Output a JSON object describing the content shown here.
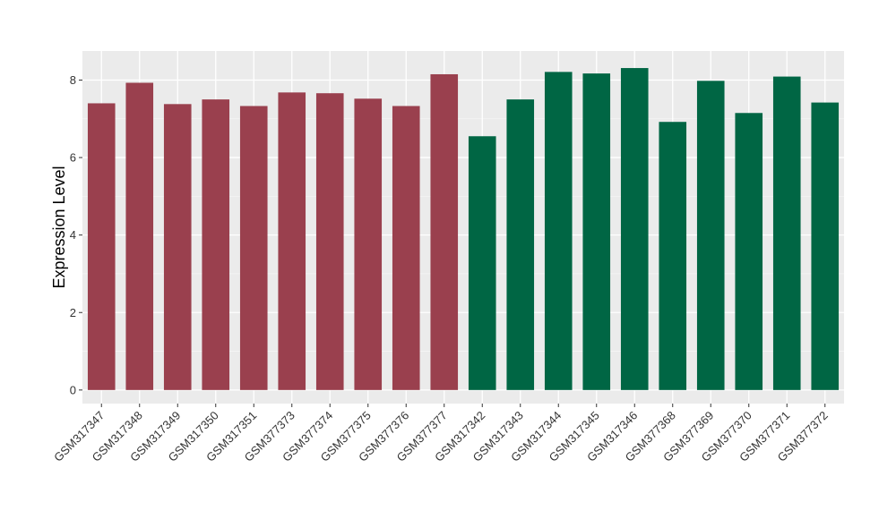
{
  "chart_data": {
    "type": "bar",
    "title": "",
    "xlabel": "",
    "ylabel": "Expression Level",
    "ylim": [
      -0.35,
      8.75
    ],
    "yticks": [
      0,
      2,
      4,
      6,
      8
    ],
    "grid": true,
    "background": "#ebebeb",
    "categories": [
      "GSM317347",
      "GSM317348",
      "GSM317349",
      "GSM317350",
      "GSM317351",
      "GSM377373",
      "GSM377374",
      "GSM377375",
      "GSM377376",
      "GSM377377",
      "GSM317342",
      "GSM317343",
      "GSM317344",
      "GSM317345",
      "GSM317346",
      "GSM377368",
      "GSM377369",
      "GSM377370",
      "GSM377371",
      "GSM377372"
    ],
    "values": [
      7.4,
      7.93,
      7.38,
      7.5,
      7.33,
      7.68,
      7.66,
      7.52,
      7.33,
      8.15,
      6.55,
      7.5,
      8.21,
      8.17,
      8.31,
      6.92,
      7.98,
      7.15,
      8.09,
      7.42
    ],
    "group_colors": [
      "#9a404e",
      "#9a404e",
      "#9a404e",
      "#9a404e",
      "#9a404e",
      "#9a404e",
      "#9a404e",
      "#9a404e",
      "#9a404e",
      "#9a404e",
      "#006644",
      "#006644",
      "#006644",
      "#006644",
      "#006644",
      "#006644",
      "#006644",
      "#006644",
      "#006644",
      "#006644"
    ]
  }
}
